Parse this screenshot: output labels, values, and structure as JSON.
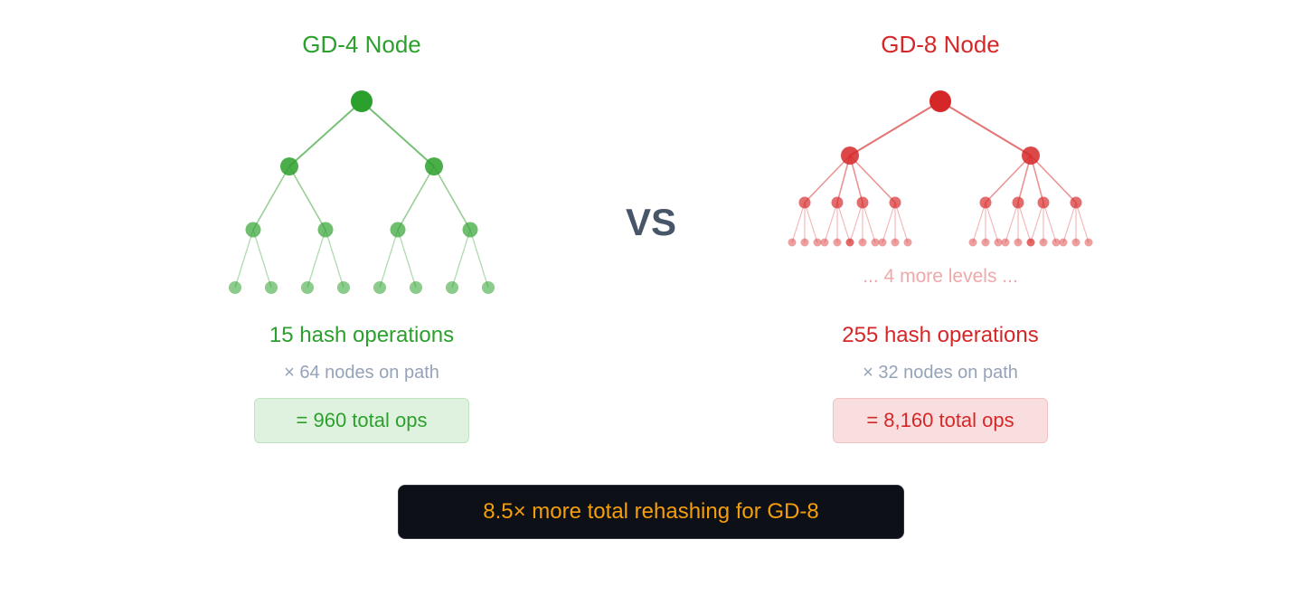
{
  "colors": {
    "gd4": "#2ca02c",
    "gd8": "#d62728",
    "vs": "#475569",
    "muted": "#94a3b8",
    "banner_bg": "#0d1117",
    "banner_text": "#f59e0b"
  },
  "left": {
    "title": "GD-4 Node",
    "hash_ops": "15 hash operations",
    "multiplier": "× 64 nodes on path",
    "total": "= 960 total ops",
    "tree": {
      "branching": 2,
      "levels_drawn": 4
    }
  },
  "vs_label": "VS",
  "right": {
    "title": "GD-8 Node",
    "more_levels": "... 4 more levels ...",
    "hash_ops": "255 hash operations",
    "multiplier": "× 32 nodes on path",
    "total": "= 8,160 total ops",
    "tree": {
      "branching": [
        2,
        4,
        3
      ],
      "levels_drawn": 4
    }
  },
  "banner": "8.5× more total rehashing for GD-8"
}
